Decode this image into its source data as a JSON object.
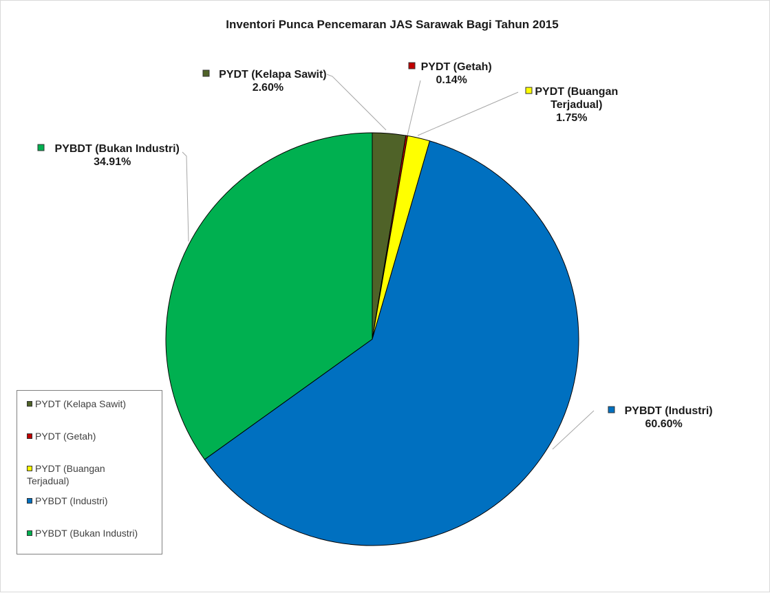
{
  "chart_data": {
    "type": "pie",
    "title": "Inventori Punca Pencemaran JAS Sarawak Bagi Tahun 2015",
    "slices": [
      {
        "label": "PYDT (Kelapa Sawit)",
        "value": 2.6,
        "value_label": "2.60%",
        "color": "#4f6228",
        "legend_label": "PYDT (Kelapa Sawit)",
        "data_label_lines": [
          "PYDT (Kelapa Sawit)"
        ]
      },
      {
        "label": "PYDT (Getah)",
        "value": 0.14,
        "value_label": "0.14%",
        "color": "#c00000",
        "legend_label": "PYDT (Getah)",
        "data_label_lines": [
          "PYDT (Getah)"
        ]
      },
      {
        "label": "PYDT (Buangan Terjadual)",
        "value": 1.75,
        "value_label": "1.75%",
        "color": "#ffff00",
        "legend_label_lines": [
          "PYDT (Buangan",
          "Terjadual)"
        ],
        "data_label_lines": [
          "PYDT (Buangan",
          "Terjadual)"
        ]
      },
      {
        "label": "PYBDT (Industri)",
        "value": 60.6,
        "value_label": "60.60%",
        "color": "#0070c0",
        "legend_label": "PYBDT (Industri)",
        "data_label_lines": [
          "PYBDT (Industri)"
        ]
      },
      {
        "label": "PYBDT (Bukan Industri)",
        "value": 34.91,
        "value_label": "34.91%",
        "color": "#00b050",
        "legend_label": "PYBDT (Bukan Industri)",
        "data_label_lines": [
          "PYBDT (Bukan Industri)"
        ]
      }
    ],
    "legend_position": "bottom-left"
  }
}
